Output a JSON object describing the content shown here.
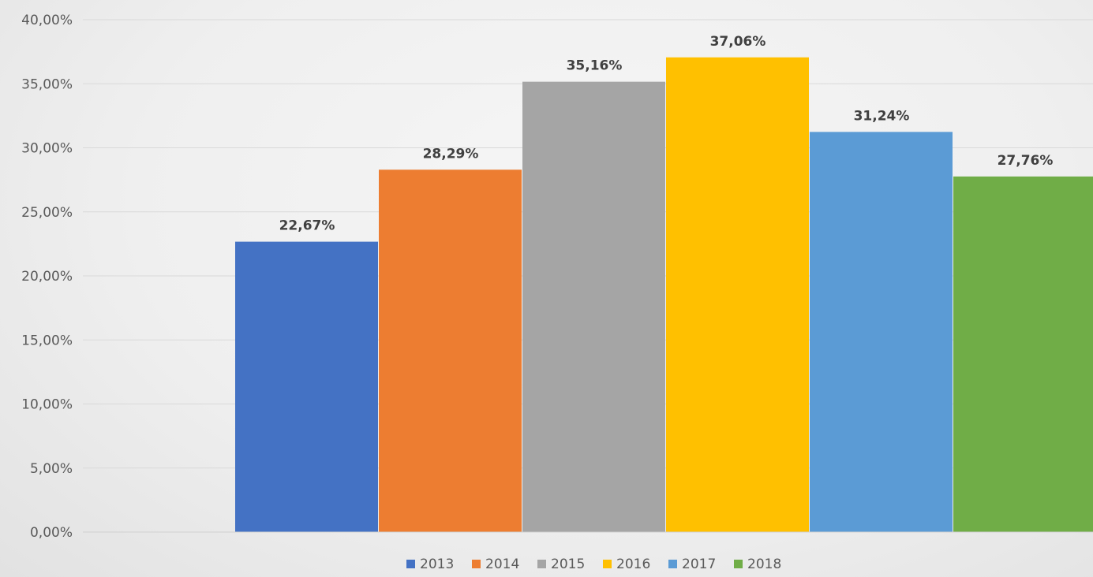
{
  "chart_data": {
    "type": "bar",
    "series": [
      {
        "name": "2013",
        "values": [
          22.67
        ],
        "label": "22,67%",
        "color": "#4472C4"
      },
      {
        "name": "2014",
        "values": [
          28.29
        ],
        "label": "28,29%",
        "color": "#ED7D31"
      },
      {
        "name": "2015",
        "values": [
          35.16
        ],
        "label": "35,16%",
        "color": "#A5A5A5"
      },
      {
        "name": "2016",
        "values": [
          37.06
        ],
        "label": "37,06%",
        "color": "#FFC000"
      },
      {
        "name": "2017",
        "values": [
          31.24
        ],
        "label": "31,24%",
        "color": "#5B9BD5"
      },
      {
        "name": "2018",
        "values": [
          27.76
        ],
        "label": "27,76%",
        "color": "#70AD47"
      }
    ],
    "ylim": [
      0,
      40
    ],
    "yticks": [
      0,
      5,
      10,
      15,
      20,
      25,
      30,
      35,
      40
    ],
    "ytick_labels": [
      "0,00%",
      "5,00%",
      "10,00%",
      "15,00%",
      "20,00%",
      "25,00%",
      "30,00%",
      "35,00%",
      "40,00%"
    ],
    "grid": true,
    "legend_position": "bottom"
  }
}
